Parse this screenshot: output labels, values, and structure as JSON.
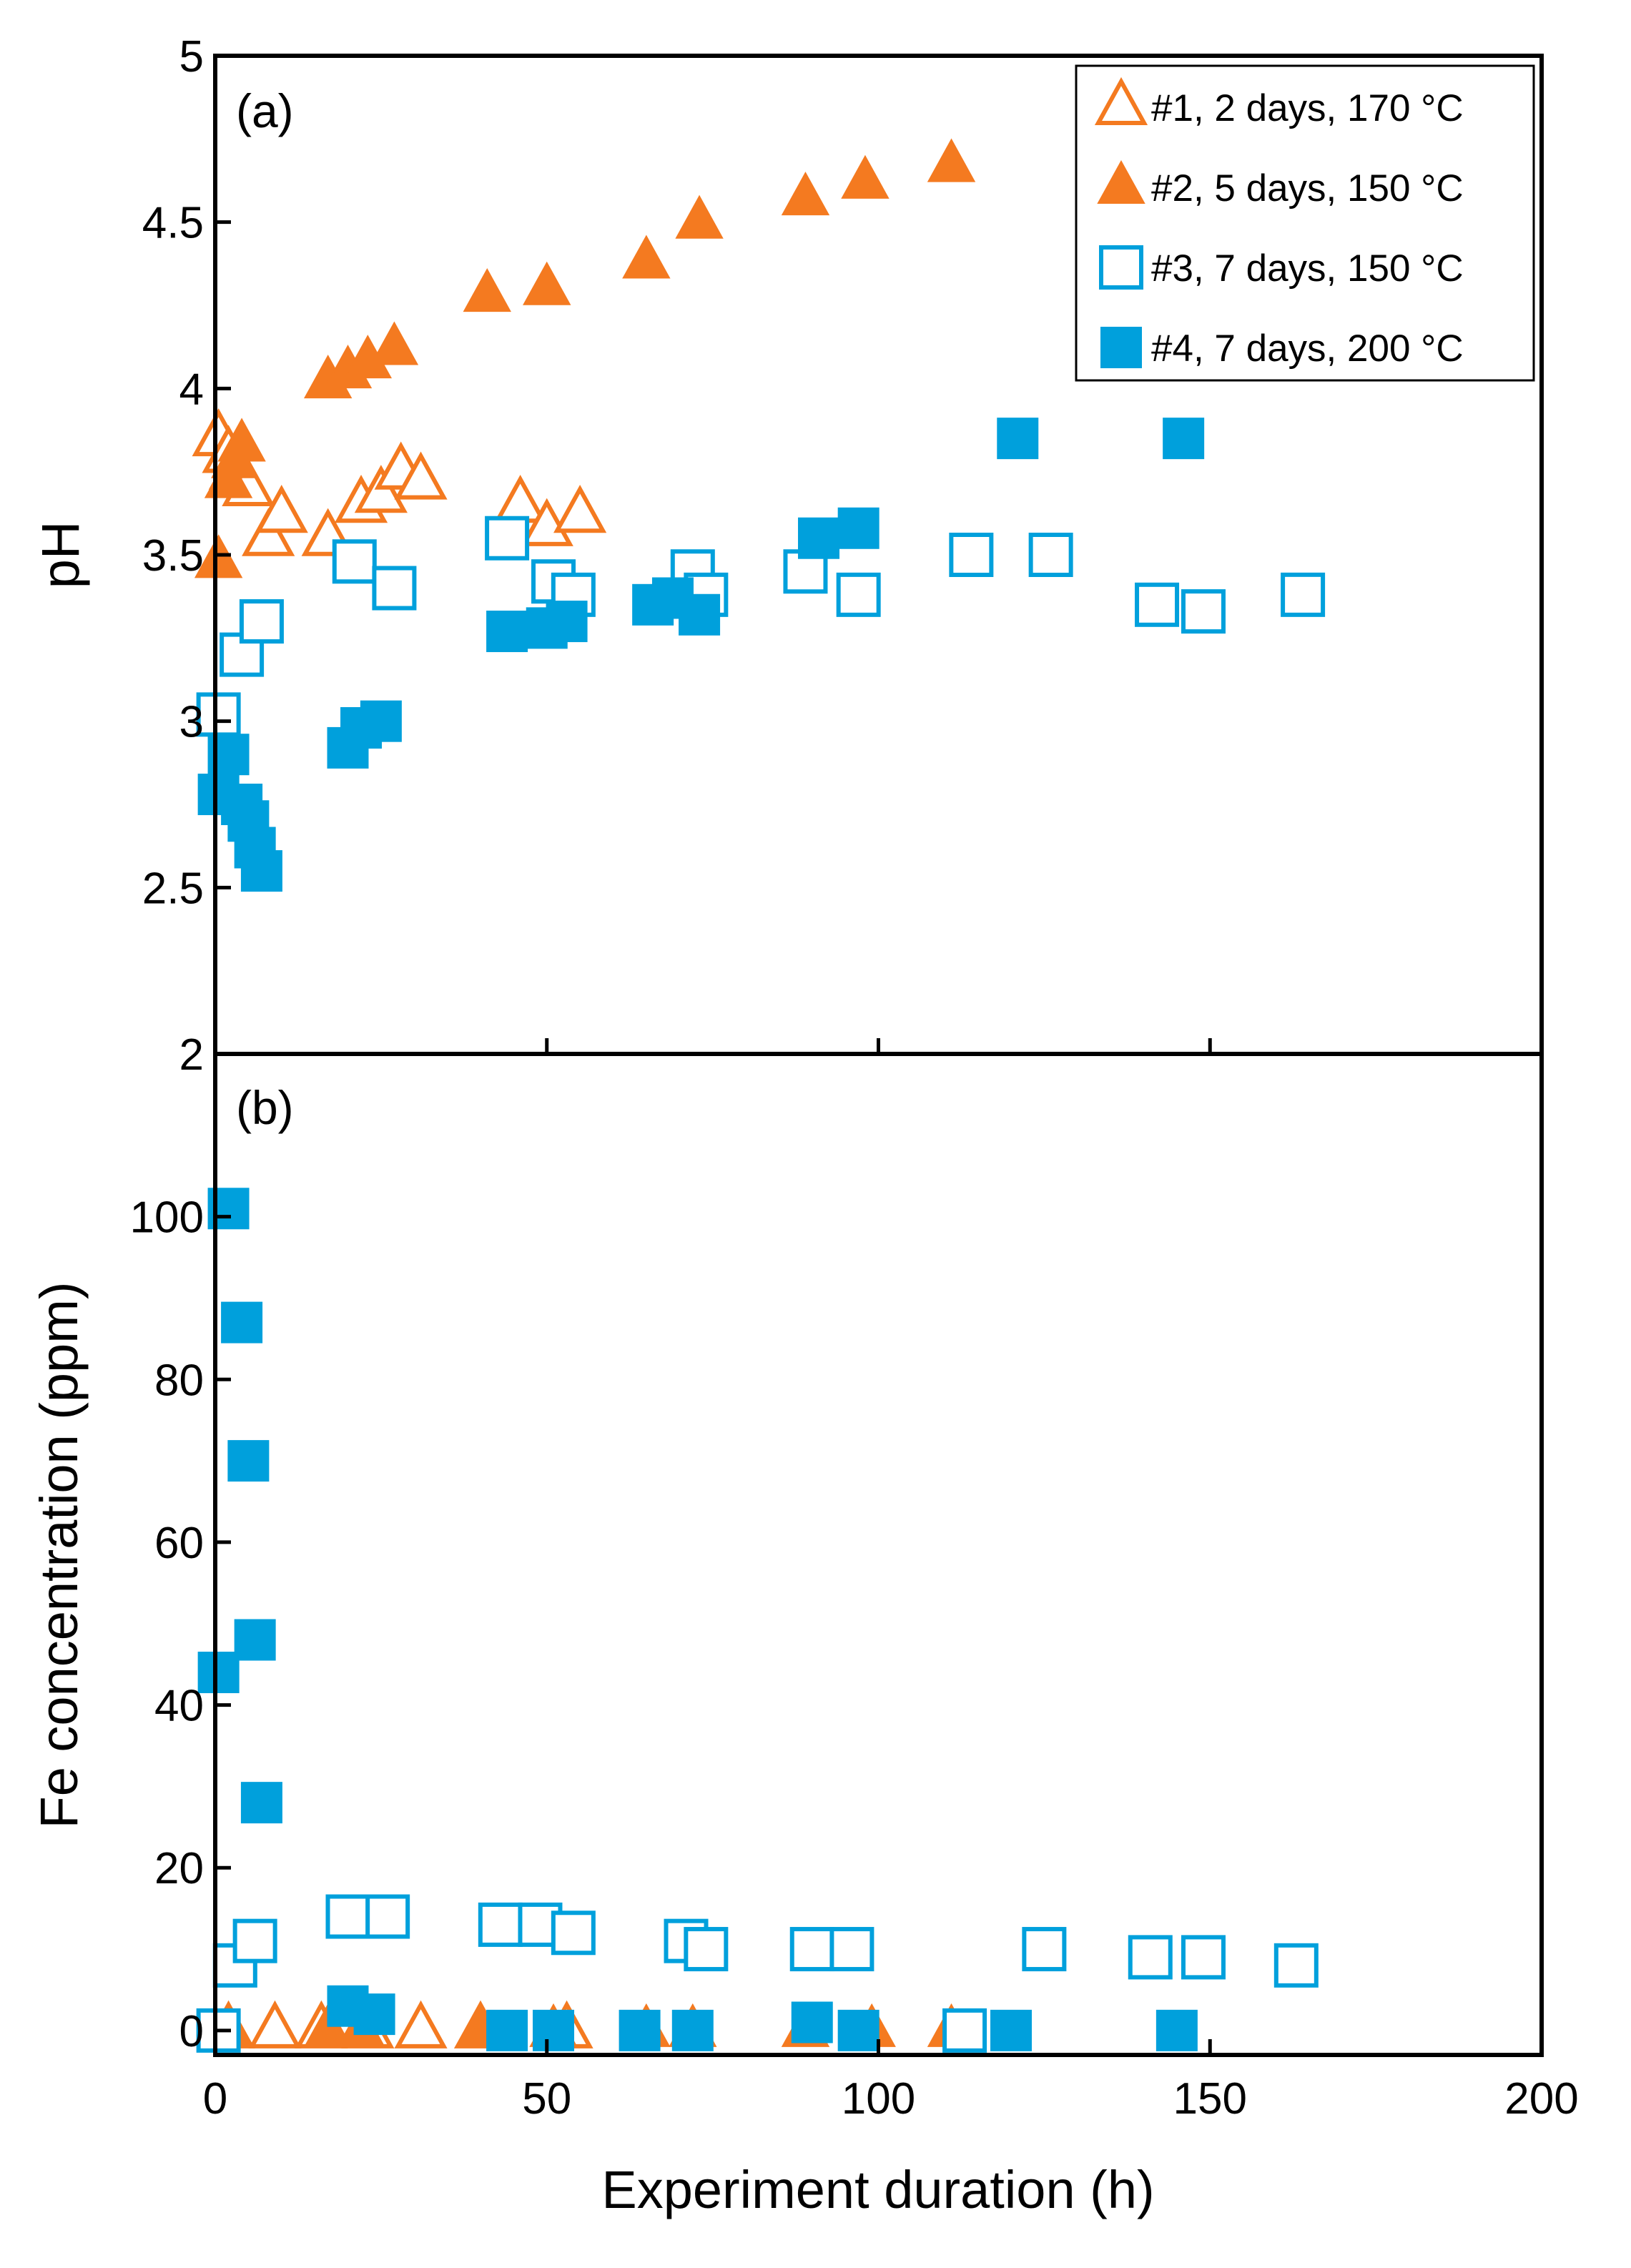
{
  "colors": {
    "orange": "#F47A20",
    "blue": "#00A0DC",
    "axis": "#000000"
  },
  "chart_data": [
    {
      "type": "scatter",
      "panel_label": "(a)",
      "xlabel": "",
      "ylabel": "pH",
      "xlim": [
        0,
        200
      ],
      "ylim": [
        2,
        5
      ],
      "yticks": [
        2,
        2.5,
        3,
        3.5,
        4,
        4.5,
        5
      ],
      "ytick_labels": [
        "2",
        "2.5",
        "3",
        "3.5",
        "4",
        "4.5",
        "5"
      ],
      "legend": {
        "position": "top-right",
        "entries": [
          "#1, 2 days, 170 °C",
          "#2, 5 days, 150 °C",
          "#3, 7 days, 150 °C",
          "#4, 7 days, 200 °C"
        ]
      },
      "series": [
        {
          "name": "#1, 2 days, 170 °C",
          "marker": "triangle-open",
          "color": "#F47A20",
          "x": [
            0.5,
            2,
            3,
            5,
            8,
            10,
            17,
            22,
            25,
            28,
            31,
            46,
            50,
            55
          ],
          "y": [
            3.85,
            3.8,
            3.75,
            3.7,
            3.55,
            3.62,
            3.55,
            3.65,
            3.68,
            3.75,
            3.72,
            3.65,
            3.58,
            3.62
          ]
        },
        {
          "name": "#2, 5 days, 150 °C",
          "marker": "triangle-filled",
          "color": "#F47A20",
          "x": [
            0.5,
            2,
            3,
            4,
            17,
            20,
            23,
            27,
            41,
            50,
            65,
            73,
            89,
            98,
            111
          ],
          "y": [
            3.48,
            3.72,
            3.78,
            3.83,
            4.02,
            4.05,
            4.08,
            4.12,
            4.28,
            4.3,
            4.38,
            4.5,
            4.57,
            4.62,
            4.67
          ]
        },
        {
          "name": "#3, 7 days, 150 °C",
          "marker": "square-open",
          "color": "#00A0DC",
          "x": [
            0.5,
            4,
            7,
            21,
            27,
            44,
            51,
            54,
            72,
            74,
            89,
            97,
            114,
            126,
            142,
            149,
            164
          ],
          "y": [
            3.02,
            3.2,
            3.3,
            3.48,
            3.4,
            3.55,
            3.42,
            3.38,
            3.45,
            3.38,
            3.45,
            3.38,
            3.5,
            3.5,
            3.35,
            3.33,
            3.38
          ]
        },
        {
          "name": "#4, 7 days, 200 °C",
          "marker": "square-filled",
          "color": "#00A0DC",
          "x": [
            0.5,
            2,
            4,
            5,
            6,
            7,
            20,
            22,
            25,
            44,
            50,
            53,
            66,
            69,
            73,
            91,
            97,
            121,
            146
          ],
          "y": [
            2.78,
            2.9,
            2.75,
            2.7,
            2.62,
            2.55,
            2.92,
            2.98,
            3.0,
            3.27,
            3.28,
            3.3,
            3.35,
            3.37,
            3.32,
            3.55,
            3.58,
            3.85,
            3.85
          ]
        }
      ]
    },
    {
      "type": "scatter",
      "panel_label": "(b)",
      "xlabel": "Experiment duration (h)",
      "ylabel": "Fe concentration (ppm)",
      "xlim": [
        0,
        200
      ],
      "ylim": [
        -3,
        120
      ],
      "xticks": [
        0,
        50,
        100,
        150,
        200
      ],
      "xtick_labels": [
        "0",
        "50",
        "100",
        "150",
        "200"
      ],
      "yticks": [
        0,
        20,
        40,
        60,
        80,
        100
      ],
      "ytick_labels": [
        "0",
        "20",
        "40",
        "60",
        "80",
        "100"
      ],
      "series": [
        {
          "name": "#1, 2 days, 170 °C",
          "marker": "triangle-open",
          "color": "#F47A20",
          "x": [
            2,
            9,
            16,
            23,
            31,
            40,
            53
          ],
          "y": [
            0,
            0,
            0,
            0,
            0,
            0,
            0
          ]
        },
        {
          "name": "#2, 5 days, 150 °C",
          "marker": "triangle-filled",
          "color": "#F47A20",
          "x": [
            2,
            17,
            22,
            40,
            51,
            65,
            72,
            89,
            99,
            111
          ],
          "y": [
            0,
            0,
            0,
            0,
            0,
            0,
            0,
            0,
            0,
            0
          ]
        },
        {
          "name": "#3, 7 days, 150 °C",
          "marker": "square-open",
          "color": "#00A0DC",
          "x": [
            0.5,
            3,
            6,
            20,
            26,
            43,
            49,
            54,
            71,
            74,
            90,
            96,
            113,
            125,
            141,
            149,
            163
          ],
          "y": [
            0,
            8,
            11,
            14,
            14,
            13,
            13,
            12,
            11,
            10,
            10,
            10,
            0,
            10,
            9,
            9,
            8
          ]
        },
        {
          "name": "#4, 7 days, 200 °C",
          "marker": "square-filled",
          "color": "#00A0DC",
          "x": [
            0.5,
            2,
            4,
            5,
            6,
            7,
            20,
            24,
            44,
            51,
            64,
            72,
            90,
            97,
            120,
            145
          ],
          "y": [
            44,
            101,
            87,
            70,
            48,
            28,
            3,
            2,
            0,
            0,
            0,
            0,
            1,
            0,
            0,
            0
          ]
        }
      ]
    }
  ]
}
